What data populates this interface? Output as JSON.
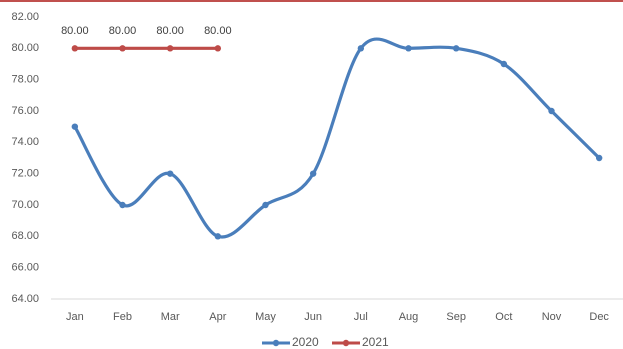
{
  "chart_data": {
    "type": "line",
    "categories": [
      "Jan",
      "Feb",
      "Mar",
      "Apr",
      "May",
      "Jun",
      "Jul",
      "Aug",
      "Sep",
      "Oct",
      "Nov",
      "Dec"
    ],
    "series": [
      {
        "name": "2020",
        "color": "#4a7ebb",
        "values": [
          75,
          70,
          72,
          68,
          70,
          72,
          80,
          80,
          80,
          79,
          76,
          73
        ]
      },
      {
        "name": "2021",
        "color": "#be4b48",
        "values": [
          80,
          80,
          80,
          80,
          null,
          null,
          null,
          null,
          null,
          null,
          null,
          null
        ],
        "value_labels": [
          "80.00",
          "80.00",
          "80.00",
          "80.00",
          null,
          null,
          null,
          null,
          null,
          null,
          null,
          null
        ]
      }
    ],
    "ylim": [
      64,
      82
    ],
    "yticks": [
      {
        "value": 64,
        "label": "64.00"
      },
      {
        "value": 66,
        "label": "66.00"
      },
      {
        "value": 68,
        "label": "68.00"
      },
      {
        "value": 70,
        "label": "70.00"
      },
      {
        "value": 72,
        "label": "72.00"
      },
      {
        "value": 74,
        "label": "74.00"
      },
      {
        "value": 76,
        "label": "76.00"
      },
      {
        "value": 78,
        "label": "78.00"
      },
      {
        "value": 80,
        "label": "80.00"
      },
      {
        "value": 82,
        "label": "82.00"
      }
    ],
    "grid": false,
    "smooth": true,
    "legend": "bottom"
  }
}
